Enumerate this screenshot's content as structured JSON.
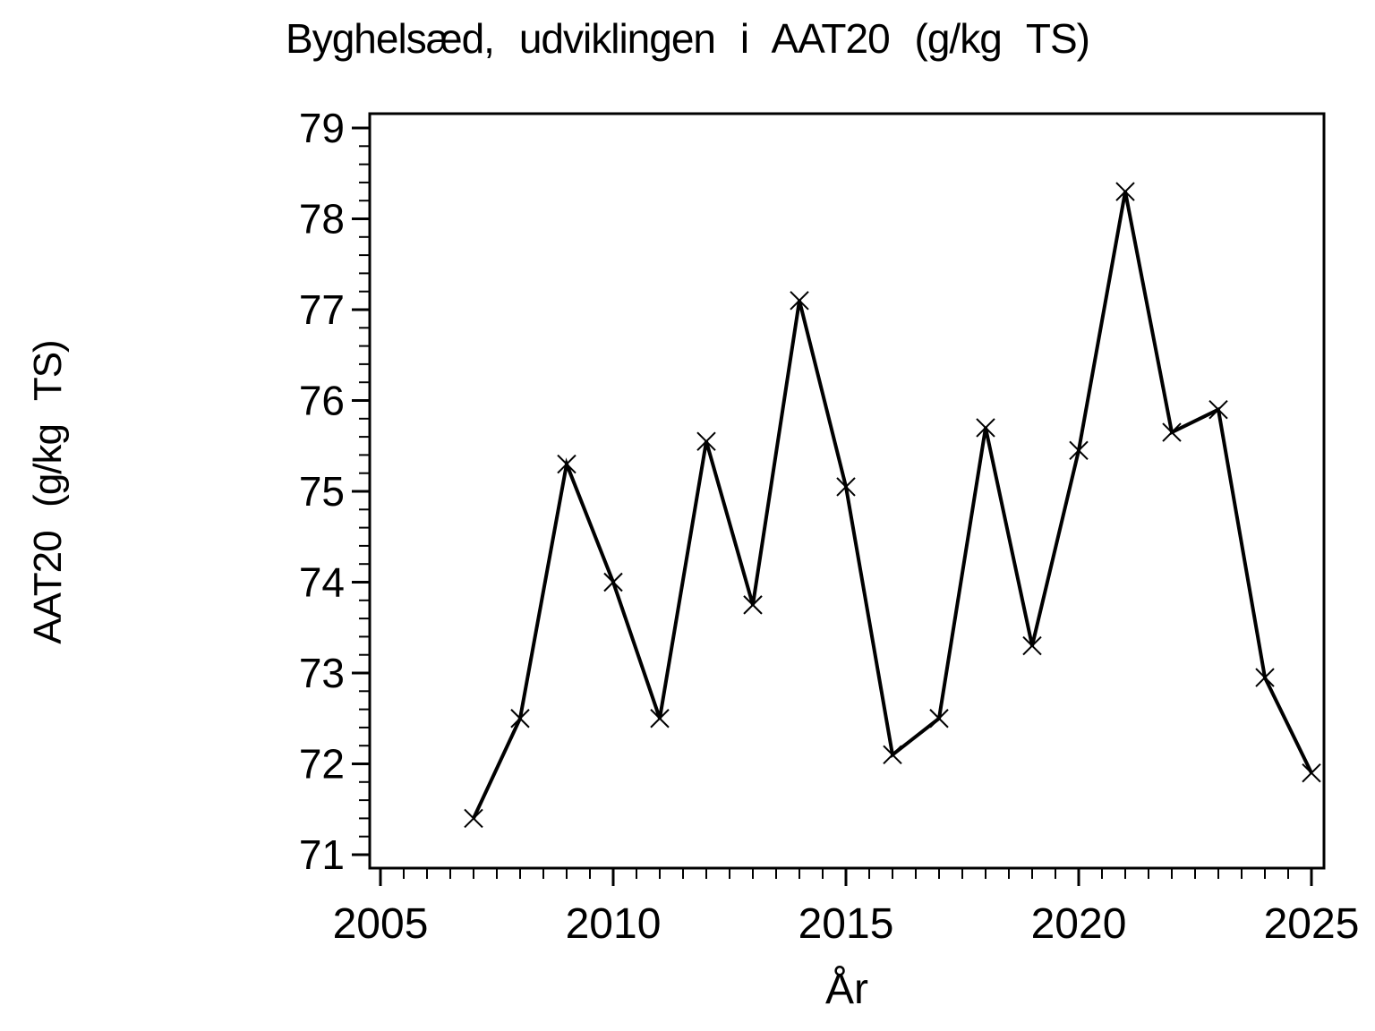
{
  "title": "Byghelsæd, udviklingen i AAT20 (g/kg TS)",
  "chart_data": {
    "type": "line",
    "title": "Byghelsæd, udviklingen i AAT20 (g/kg TS)",
    "xlabel": "År",
    "ylabel": "AAT20 (g/kg TS)",
    "series": [
      {
        "name": "AAT20",
        "x": [
          2007,
          2008,
          2009,
          2010,
          2011,
          2012,
          2013,
          2014,
          2015,
          2016,
          2017,
          2018,
          2019,
          2020,
          2021,
          2022,
          2023,
          2024,
          2025
        ],
        "values": [
          71.4,
          72.5,
          75.3,
          74.0,
          72.5,
          75.55,
          73.75,
          77.1,
          75.05,
          72.1,
          72.5,
          75.7,
          73.3,
          75.45,
          78.3,
          75.65,
          75.9,
          72.95,
          71.9
        ]
      }
    ],
    "xticks_major": [
      2005,
      2010,
      2015,
      2020,
      2025
    ],
    "xtick_minor_step": 0.5,
    "yticks_major": [
      71,
      72,
      73,
      74,
      75,
      76,
      77,
      78,
      79
    ],
    "ytick_minor_step": 0.2,
    "xlim": [
      2004.77,
      2025.27
    ],
    "ylim": [
      70.85,
      79.16
    ],
    "marker": "x",
    "line_color": "#000000",
    "background_color": "#ffffff",
    "grid": false,
    "legend_position": "none"
  }
}
